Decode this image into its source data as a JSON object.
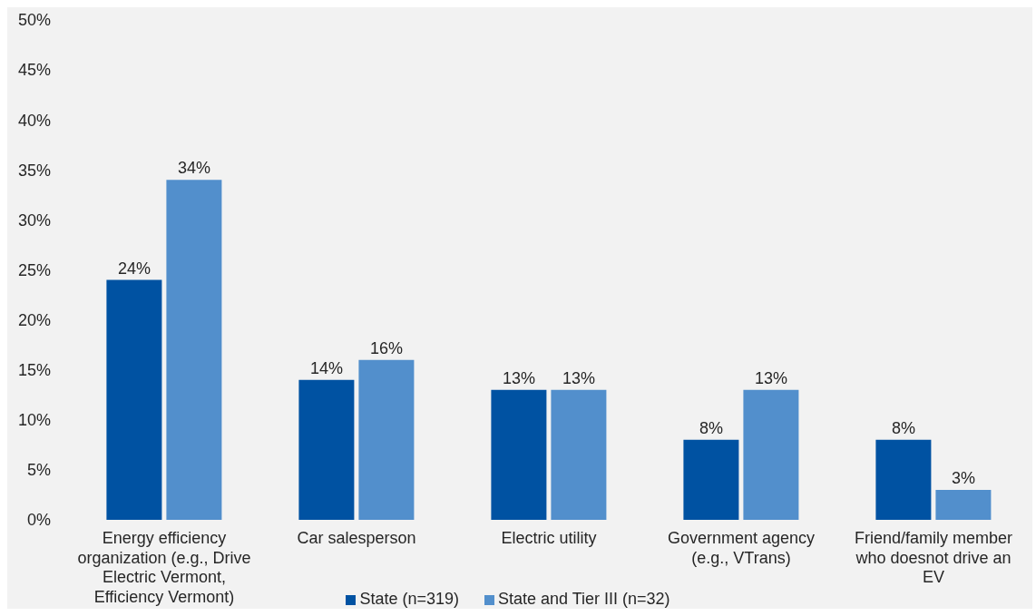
{
  "chart_data": {
    "type": "bar",
    "categories": [
      "Energy efficiency organization (e.g., Drive Electric Vermont, Efficiency Vermont)",
      "Car salesperson",
      "Electric utility",
      "Government agency (e.g., VTrans)",
      "Friend/family member who doesnot drive an EV"
    ],
    "series": [
      {
        "name": "State (n=319)",
        "color": "#0052a2",
        "values": [
          24,
          14,
          13,
          8,
          8
        ],
        "value_labels": [
          "24%",
          "14%",
          "13%",
          "8%",
          "8%"
        ]
      },
      {
        "name": "State and Tier III (n=32)",
        "color": "#528fcc",
        "values": [
          34,
          16,
          13,
          13,
          3
        ],
        "value_labels": [
          "34%",
          "16%",
          "13%",
          "13%",
          "3%"
        ]
      }
    ],
    "ylim": [
      0,
      50
    ],
    "yticks": [
      {
        "value": 0,
        "label": "0%"
      },
      {
        "value": 5,
        "label": "5%"
      },
      {
        "value": 10,
        "label": "10%"
      },
      {
        "value": 15,
        "label": "15%"
      },
      {
        "value": 20,
        "label": "20%"
      },
      {
        "value": 25,
        "label": "25%"
      },
      {
        "value": 30,
        "label": "30%"
      },
      {
        "value": 35,
        "label": "35%"
      },
      {
        "value": 40,
        "label": "40%"
      },
      {
        "value": 45,
        "label": "45%"
      },
      {
        "value": 50,
        "label": "50%"
      }
    ],
    "legend": "bottom"
  }
}
